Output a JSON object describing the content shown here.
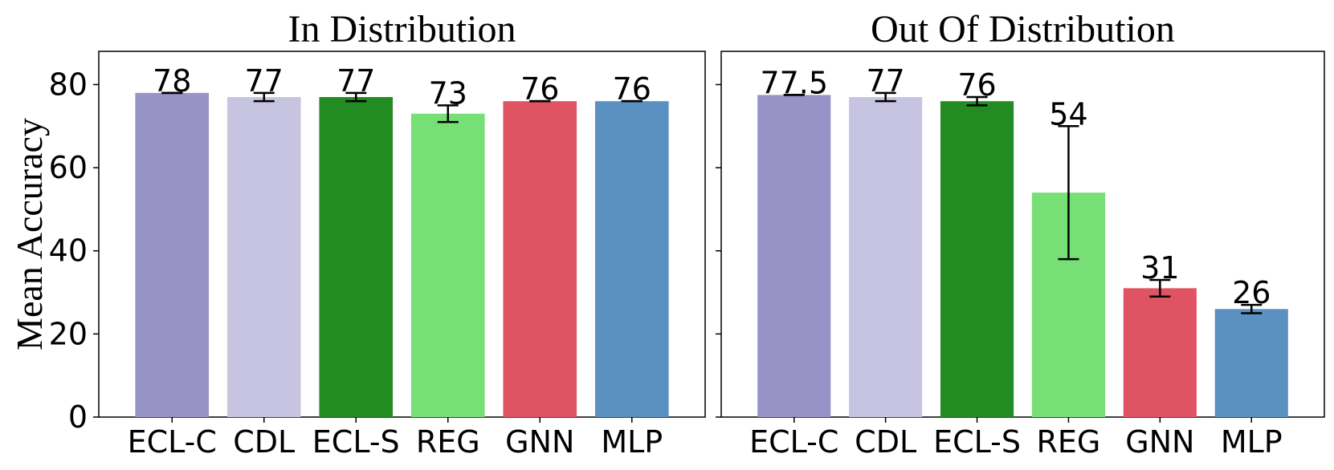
{
  "chart_data": [
    {
      "type": "bar",
      "title": "In Distribution",
      "ylabel": "Mean Accuracy",
      "ylim": [
        0,
        88
      ],
      "yticks": [
        0,
        20,
        40,
        60,
        80
      ],
      "categories": [
        "ECL-C",
        "CDL",
        "ECL-S",
        "REG",
        "GNN",
        "MLP"
      ],
      "values": [
        78,
        77,
        77,
        73,
        76,
        76
      ],
      "errors": [
        0,
        1,
        1,
        2,
        0,
        0
      ],
      "labels": [
        "78",
        "77",
        "77",
        "73",
        "76",
        "76"
      ],
      "colors": [
        "#9793c6",
        "#c7c4e2",
        "#228b22",
        "#76df76",
        "#df5363",
        "#5b91c1"
      ]
    },
    {
      "type": "bar",
      "title": "Out Of Distribution",
      "ylim": [
        0,
        88
      ],
      "yticks": [
        0,
        20,
        40,
        60,
        80
      ],
      "categories": [
        "ECL-C",
        "CDL",
        "ECL-S",
        "REG",
        "GNN",
        "MLP"
      ],
      "values": [
        77.5,
        77,
        76,
        54,
        31,
        26
      ],
      "errors": [
        0,
        1,
        1,
        16,
        2,
        1
      ],
      "labels": [
        "77.5",
        "77",
        "76",
        "54",
        "31",
        "26"
      ],
      "colors": [
        "#9793c6",
        "#c7c4e2",
        "#228b22",
        "#76df76",
        "#df5363",
        "#5b91c1"
      ]
    }
  ]
}
